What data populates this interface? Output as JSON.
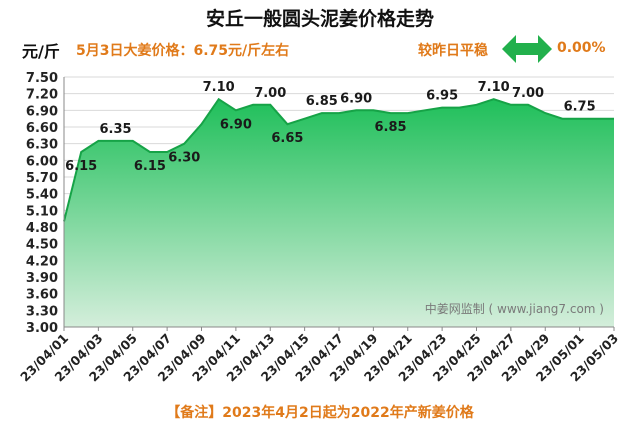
{
  "header": {
    "title": "安丘一般圆头泥姜价格走势",
    "unit": "元/斤",
    "price_note": "5月3日大姜价格：6.75元/斤左右",
    "compare_label": "较昨日平稳",
    "compare_value": "0.00%"
  },
  "footnote": "【备注】2023年4月2日起为2022年产新姜价格",
  "watermark": "中姜网监制 ( www.jiang7.com )",
  "colors": {
    "accent": "#e07a1a",
    "area_top": "#1fbf5a",
    "area_bottom": "#d4eedb",
    "line": "#16a347",
    "arrow": "#22b04c"
  },
  "icons": {
    "compare": "double-arrow-icon"
  },
  "chart_data": {
    "type": "area",
    "title": "安丘一般圆头泥姜价格走势",
    "ylabel": "元/斤",
    "ylim": [
      3.0,
      7.5
    ],
    "yticks": [
      "3.00",
      "3.30",
      "3.60",
      "3.90",
      "4.20",
      "4.50",
      "4.80",
      "5.10",
      "5.40",
      "5.70",
      "6.00",
      "6.30",
      "6.60",
      "6.90",
      "7.20",
      "7.50"
    ],
    "xtick_labels": [
      "23/04/01",
      "23/04/03",
      "23/04/05",
      "23/04/07",
      "23/04/09",
      "23/04/11",
      "23/04/13",
      "23/04/15",
      "23/04/17",
      "23/04/19",
      "23/04/21",
      "23/04/23",
      "23/04/25",
      "23/04/27",
      "23/04/29",
      "23/05/01",
      "23/05/03"
    ],
    "x": [
      "23/04/01",
      "23/04/02",
      "23/04/03",
      "23/04/04",
      "23/04/05",
      "23/04/06",
      "23/04/07",
      "23/04/08",
      "23/04/09",
      "23/04/10",
      "23/04/11",
      "23/04/12",
      "23/04/13",
      "23/04/14",
      "23/04/15",
      "23/04/16",
      "23/04/17",
      "23/04/18",
      "23/04/19",
      "23/04/20",
      "23/04/21",
      "23/04/22",
      "23/04/23",
      "23/04/24",
      "23/04/25",
      "23/04/26",
      "23/04/27",
      "23/04/28",
      "23/04/29",
      "23/04/30",
      "23/05/01",
      "23/05/02",
      "23/05/03"
    ],
    "values": [
      4.9,
      6.15,
      6.35,
      6.35,
      6.35,
      6.15,
      6.15,
      6.3,
      6.65,
      7.1,
      6.9,
      7.0,
      7.0,
      6.65,
      6.75,
      6.85,
      6.85,
      6.9,
      6.9,
      6.85,
      6.85,
      6.9,
      6.95,
      6.95,
      7.0,
      7.1,
      7.0,
      7.0,
      6.85,
      6.75,
      6.75,
      6.75,
      6.75
    ],
    "data_labels": [
      {
        "index": 1,
        "text": "6.15"
      },
      {
        "index": 3,
        "text": "6.35"
      },
      {
        "index": 5,
        "text": "6.15"
      },
      {
        "index": 7,
        "text": "6.30"
      },
      {
        "index": 9,
        "text": "7.10"
      },
      {
        "index": 10,
        "text": "6.90"
      },
      {
        "index": 12,
        "text": "7.00"
      },
      {
        "index": 13,
        "text": "6.65"
      },
      {
        "index": 15,
        "text": "6.85"
      },
      {
        "index": 17,
        "text": "6.90"
      },
      {
        "index": 19,
        "text": "6.85"
      },
      {
        "index": 22,
        "text": "6.95"
      },
      {
        "index": 25,
        "text": "7.10"
      },
      {
        "index": 27,
        "text": "7.00"
      },
      {
        "index": 30,
        "text": "6.75"
      }
    ],
    "grid": true
  }
}
